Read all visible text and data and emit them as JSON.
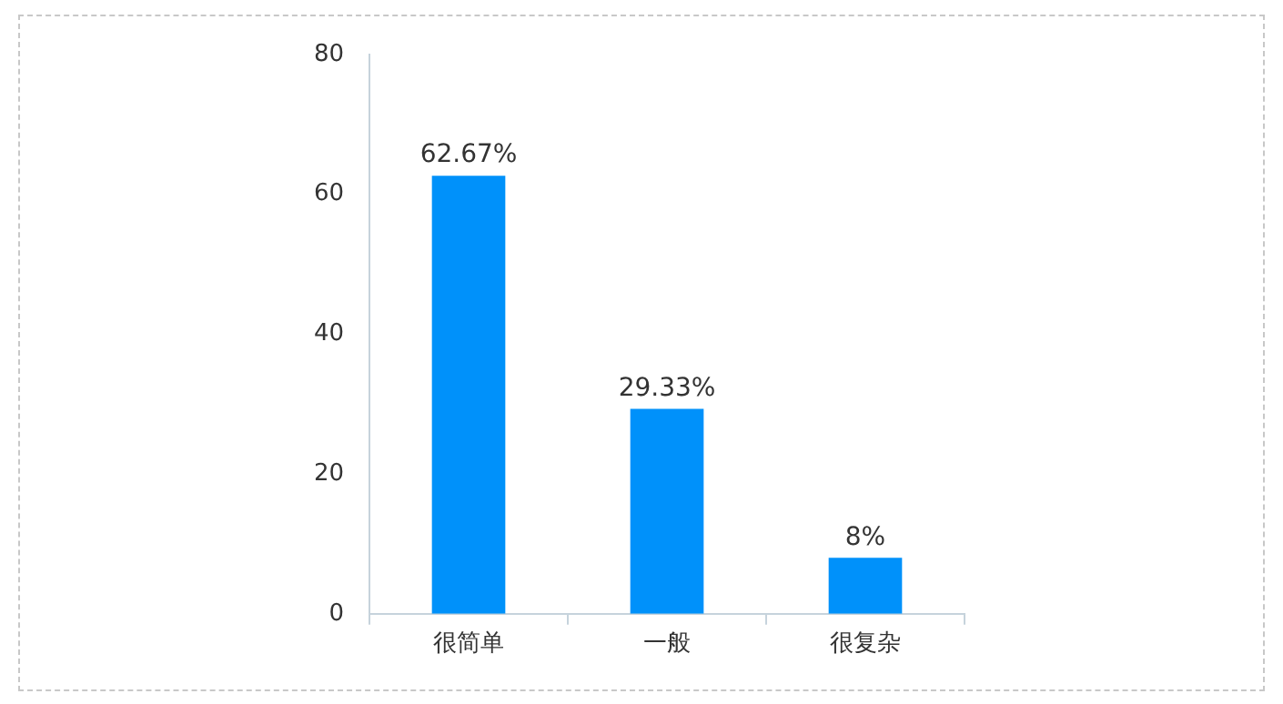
{
  "chart_data": {
    "type": "bar",
    "categories": [
      "很简单",
      "一般",
      "很复杂"
    ],
    "values": [
      62.67,
      29.33,
      8
    ],
    "color": "#0091fa",
    "value_labels": [
      "62.67%",
      "29.33%",
      "8%"
    ],
    "ylim": [
      0,
      80
    ],
    "yticks": [
      0,
      20,
      40,
      60,
      80
    ],
    "grid": false,
    "legend": false
  }
}
